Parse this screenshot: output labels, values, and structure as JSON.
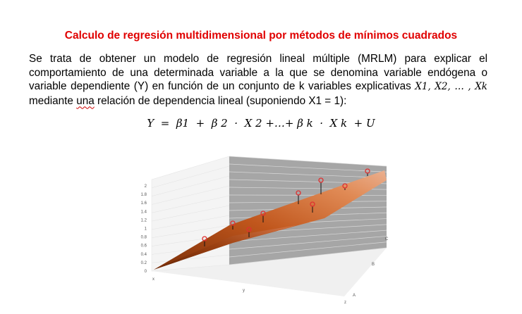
{
  "title": "Calculo de regresión multidimensional por métodos de mínimos cuadrados",
  "paragraph": {
    "line1": "Se trata de obtener un modelo de regresión lineal múltiple (MRLM) para explicar el",
    "line2": "comportamiento de una determinada variable a la que se denomina variable endógena o",
    "line3_text": "variable dependiente (Y) en función de un conjunto de k variables explicativas ",
    "line3_math": "X1, X2, … , Xk",
    "line4_pre": "mediante ",
    "line4_underlined": "una",
    "line4_post": " relación de dependencia lineal (suponiendo X1 = 1):"
  },
  "formula": "Y  =  β1  +  β 2  ·  X 2 +…+ β k  ·  X k  + U",
  "chart_data": {
    "type": "scatter",
    "chart_kind": "3d-surface-with-points",
    "zlim": [
      0,
      2
    ],
    "z_ticks": [
      "0",
      "0.2",
      "0.4",
      "0.6",
      "0.8",
      "1",
      "1.2",
      "1.4",
      "1.6",
      "1.8",
      "2"
    ],
    "axis_labels": {
      "x": "x",
      "y": "y",
      "z": "z"
    },
    "depth_ticks": [
      "A",
      "B",
      "C"
    ],
    "colors": {
      "surface": "#c0561c",
      "points": "#e03030",
      "back_wall": "#a6a6a6"
    }
  }
}
